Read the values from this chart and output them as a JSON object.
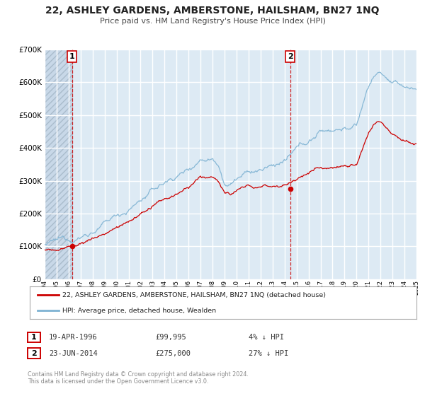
{
  "title": "22, ASHLEY GARDENS, AMBERSTONE, HAILSHAM, BN27 1NQ",
  "subtitle": "Price paid vs. HM Land Registry's House Price Index (HPI)",
  "legend_line1": "22, ASHLEY GARDENS, AMBERSTONE, HAILSHAM, BN27 1NQ (detached house)",
  "legend_line2": "HPI: Average price, detached house, Wealden",
  "sale1_date": "19-APR-1996",
  "sale1_price": "£99,995",
  "sale1_hpi": "4% ↓ HPI",
  "sale2_date": "23-JUN-2014",
  "sale2_price": "£275,000",
  "sale2_hpi": "27% ↓ HPI",
  "copyright": "Contains HM Land Registry data © Crown copyright and database right 2024.\nThis data is licensed under the Open Government Licence v3.0.",
  "red_color": "#cc0000",
  "blue_color": "#7fb3d3",
  "plot_bg": "#ddeaf4",
  "grid_color": "#ffffff",
  "sale1_x": 1996.29,
  "sale1_y": 99995,
  "sale2_x": 2014.47,
  "sale2_y": 275000,
  "xmin": 1994,
  "xmax": 2025,
  "ymin": 0,
  "ymax": 700000,
  "yticks": [
    0,
    100000,
    200000,
    300000,
    400000,
    500000,
    600000,
    700000
  ]
}
